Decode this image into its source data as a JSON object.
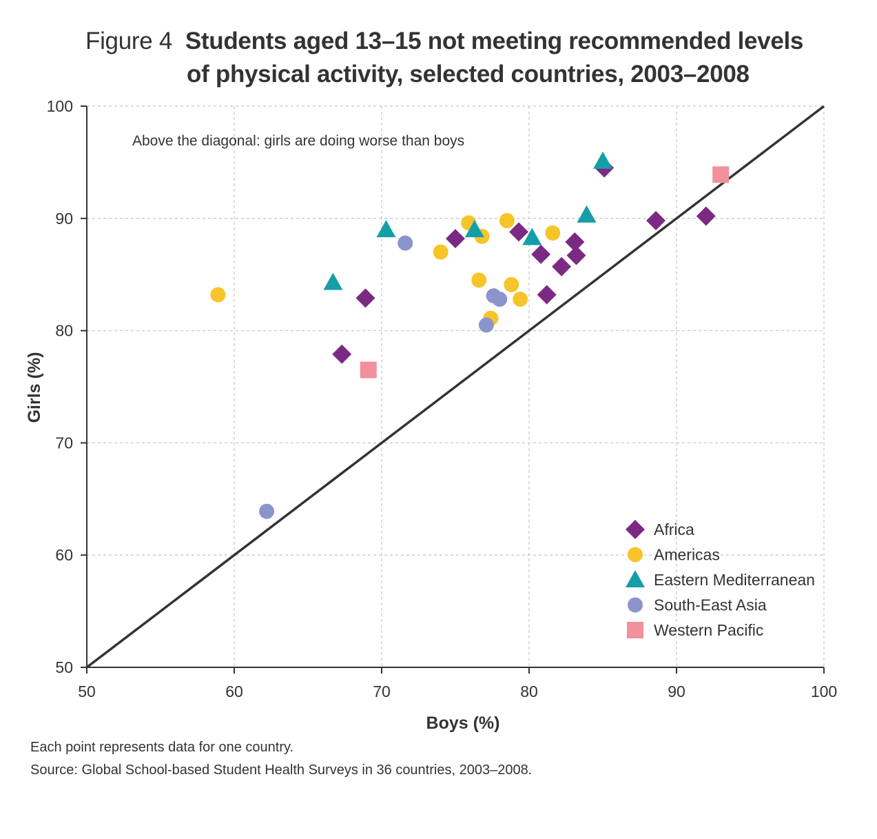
{
  "figure_label": "Figure 4",
  "title_line1": "Students aged 13–15 not meeting recommended levels",
  "title_line2": "of physical activity, selected countries, 2003–2008",
  "footnote": "Each point represents data for one country.",
  "source": "Source: Global School-based Student Health Surveys in 36 countries, 2003–2008.",
  "chart_data": {
    "type": "scatter",
    "xlabel": "Boys (%)",
    "ylabel": "Girls (%)",
    "xlim": [
      50,
      100
    ],
    "ylim": [
      50,
      100
    ],
    "x_ticks": [
      50,
      60,
      70,
      80,
      90,
      100
    ],
    "y_ticks": [
      50,
      60,
      70,
      80,
      90,
      100
    ],
    "grid": true,
    "reference_line": "diagonal",
    "annotation": "Above the diagonal: girls are doing worse than boys",
    "legend_position": "bottom-right",
    "series": [
      {
        "name": "Africa",
        "marker": "diamond",
        "color": "#7b2a83",
        "x": [
          85.1,
          75.0,
          79.3,
          80.8,
          83.1,
          82.2,
          83.2,
          81.2,
          68.9,
          67.3,
          88.6,
          92.0
        ],
        "y": [
          94.5,
          88.2,
          88.8,
          86.8,
          87.9,
          85.7,
          86.7,
          83.2,
          82.9,
          77.9,
          89.8,
          90.2
        ]
      },
      {
        "name": "Americas",
        "marker": "circle",
        "color": "#f7c42a",
        "x": [
          58.9,
          74.0,
          75.9,
          76.8,
          78.5,
          81.6,
          76.6,
          78.8,
          79.4,
          77.4
        ],
        "y": [
          83.2,
          87.0,
          89.6,
          88.4,
          89.8,
          88.7,
          84.5,
          84.1,
          82.8,
          81.1
        ]
      },
      {
        "name": "Eastern Mediterranean",
        "marker": "triangle",
        "color": "#169ea8",
        "x": [
          85.0,
          70.3,
          76.3,
          80.2,
          83.9,
          66.7
        ],
        "y": [
          95.1,
          89.0,
          89.0,
          88.3,
          90.3,
          84.3
        ]
      },
      {
        "name": "South-East Asia",
        "marker": "circle",
        "color": "#8b95cc",
        "x": [
          71.6,
          77.6,
          78.0,
          77.1,
          62.2
        ],
        "y": [
          87.8,
          83.1,
          82.8,
          80.5,
          63.9
        ]
      },
      {
        "name": "Western Pacific",
        "marker": "square",
        "color": "#f2909b",
        "x": [
          93.0,
          69.1
        ],
        "y": [
          93.9,
          76.5
        ]
      }
    ]
  }
}
